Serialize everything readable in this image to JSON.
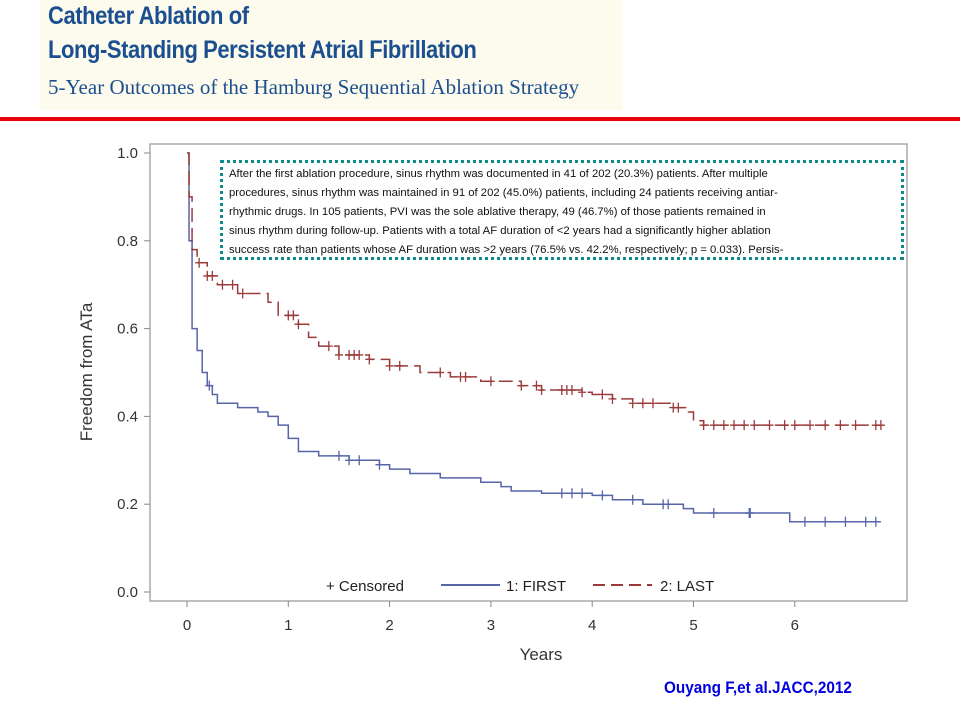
{
  "header": {
    "title_line1": "Catheter Ablation of",
    "title_line2": "Long-Standing Persistent Atrial Fibrillation",
    "subtitle": "5-Year Outcomes of the Hamburg Sequential Ablation Strategy"
  },
  "note": {
    "lines": [
      "After the first ablation procedure, sinus rhythm was documented in 41 of 202 (20.3%) patients. After multiple",
      "procedures, sinus rhythm was maintained in 91 of 202 (45.0%) patients, including 24 patients receiving antiar-",
      "rhythmic drugs. In 105 patients, PVI was the sole ablative therapy, 49 (46.7%) of those patients remained in",
      "sinus rhythm during follow-up. Patients with a total AF duration of <2 years had a significantly higher ablation",
      "success rate than patients whose AF duration was >2 years (76.5% vs. 42.2%, respectively; p = 0.033). Persis-"
    ]
  },
  "citation": "Ouyang F,et al.JACC,2012",
  "colors": {
    "first": "#5565a8",
    "last": "#9b3a3a",
    "accent": "#e8000b"
  },
  "chart_data": {
    "type": "line",
    "title": "",
    "xlabel": "Years",
    "ylabel": "Freedom from ATa",
    "xlim": [
      0,
      7
    ],
    "ylim": [
      0,
      1
    ],
    "xticks": [
      "0",
      "1",
      "2",
      "3",
      "4",
      "5",
      "6"
    ],
    "yticks": [
      "0.0",
      "0.2",
      "0.4",
      "0.6",
      "0.8",
      "1.0"
    ],
    "legend": {
      "placement": "bottom-inside",
      "censored_label": "+ Censored",
      "entries": [
        "1: FIRST",
        "2: LAST"
      ]
    },
    "series": [
      {
        "name": "1: FIRST",
        "style": "solid",
        "x": [
          0,
          0.02,
          0.05,
          0.1,
          0.15,
          0.2,
          0.25,
          0.3,
          0.5,
          0.7,
          0.8,
          0.9,
          1.0,
          1.1,
          1.3,
          1.6,
          1.9,
          2.0,
          2.2,
          2.5,
          2.9,
          3.1,
          3.2,
          3.5,
          4.0,
          4.2,
          4.5,
          4.9,
          5.0,
          5.6,
          5.95,
          6.85
        ],
        "y": [
          1.0,
          0.8,
          0.6,
          0.55,
          0.5,
          0.47,
          0.45,
          0.43,
          0.42,
          0.41,
          0.4,
          0.38,
          0.35,
          0.32,
          0.31,
          0.3,
          0.29,
          0.28,
          0.27,
          0.26,
          0.25,
          0.24,
          0.23,
          0.225,
          0.22,
          0.21,
          0.2,
          0.19,
          0.18,
          0.18,
          0.16,
          0.16
        ],
        "censored": [
          0.22,
          1.5,
          1.6,
          1.7,
          1.9,
          3.7,
          3.8,
          3.9,
          4.1,
          4.4,
          4.7,
          4.75,
          5.2,
          5.55,
          5.56,
          6.1,
          6.3,
          6.5,
          6.7,
          6.8
        ]
      },
      {
        "name": "2: LAST",
        "style": "dashed",
        "x": [
          0,
          0.02,
          0.05,
          0.1,
          0.2,
          0.3,
          0.5,
          0.8,
          0.9,
          1.1,
          1.2,
          1.3,
          1.5,
          1.8,
          2.0,
          2.3,
          2.6,
          2.9,
          3.3,
          3.5,
          3.9,
          4.0,
          4.2,
          4.4,
          4.8,
          4.95,
          5.0,
          5.1,
          6.85
        ],
        "y": [
          1.0,
          0.9,
          0.78,
          0.75,
          0.72,
          0.7,
          0.68,
          0.66,
          0.63,
          0.61,
          0.58,
          0.56,
          0.54,
          0.53,
          0.515,
          0.5,
          0.49,
          0.48,
          0.47,
          0.46,
          0.455,
          0.45,
          0.44,
          0.43,
          0.42,
          0.41,
          0.39,
          0.38,
          0.38
        ],
        "censored": [
          0.12,
          0.2,
          0.25,
          0.35,
          0.45,
          0.55,
          1.0,
          1.05,
          1.1,
          1.4,
          1.5,
          1.6,
          1.65,
          1.7,
          1.8,
          2.0,
          2.1,
          2.5,
          2.7,
          2.75,
          3.0,
          3.3,
          3.45,
          3.5,
          3.7,
          3.75,
          3.8,
          3.9,
          4.1,
          4.2,
          4.4,
          4.5,
          4.6,
          4.8,
          4.85,
          5.1,
          5.2,
          5.3,
          5.4,
          5.5,
          5.6,
          5.75,
          5.9,
          6.0,
          6.15,
          6.3,
          6.45,
          6.6,
          6.8,
          6.85
        ]
      }
    ]
  }
}
